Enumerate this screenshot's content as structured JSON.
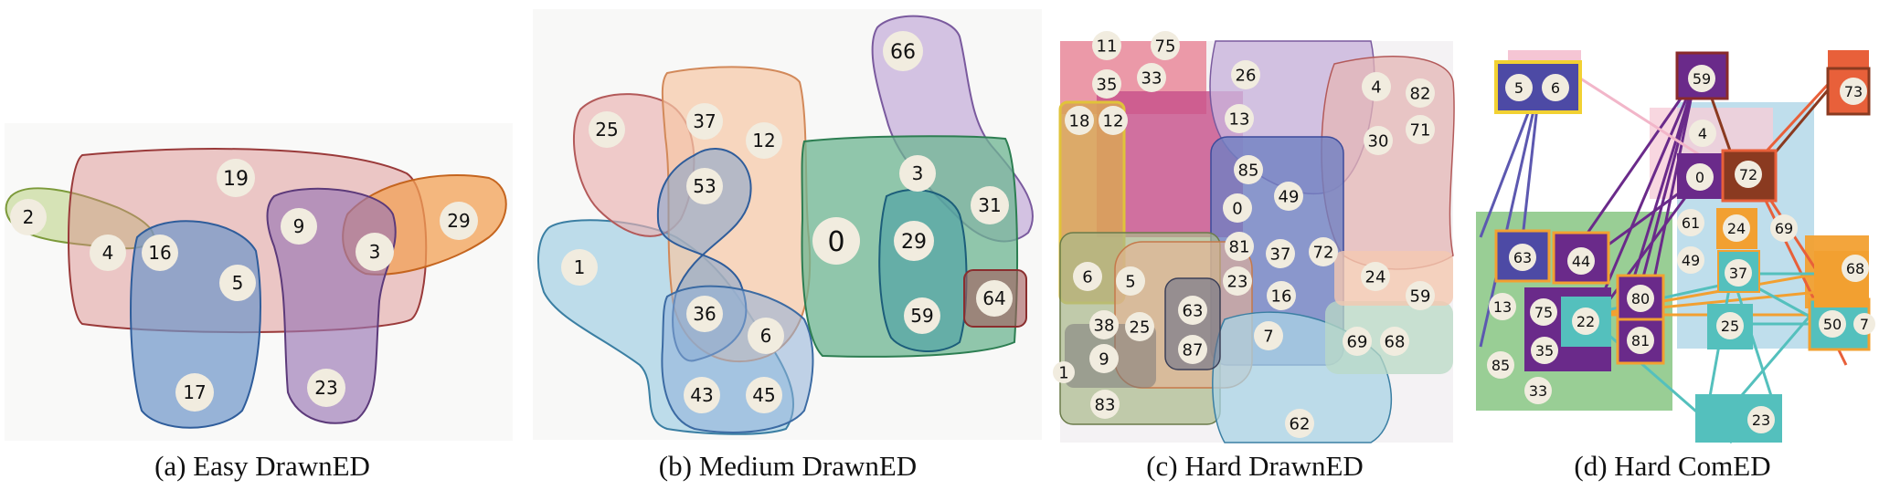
{
  "panels": {
    "a": {
      "caption": "(a)  Easy DrawnED",
      "nodes": [
        "2",
        "19",
        "4",
        "16",
        "5",
        "9",
        "3",
        "29",
        "17",
        "23"
      ]
    },
    "b": {
      "caption": "(b)  Medium DrawnED",
      "nodes": [
        "66",
        "25",
        "37",
        "12",
        "53",
        "3",
        "31",
        "0",
        "29",
        "1",
        "36",
        "6",
        "59",
        "64",
        "43",
        "45"
      ]
    },
    "c": {
      "caption": "(c)  Hard DrawnED",
      "nodes": [
        "11",
        "75",
        "35",
        "33",
        "26",
        "4",
        "82",
        "18",
        "12",
        "13",
        "71",
        "30",
        "85",
        "49",
        "0",
        "81",
        "37",
        "72",
        "6",
        "5",
        "23",
        "16",
        "24",
        "59",
        "63",
        "38",
        "25",
        "9",
        "87",
        "7",
        "69",
        "68",
        "1",
        "83",
        "62"
      ]
    },
    "d": {
      "caption": "(d)  Hard ComED",
      "nodes": [
        "5",
        "6",
        "59",
        "73",
        "4",
        "0",
        "72",
        "61",
        "24",
        "69",
        "63",
        "44",
        "49",
        "37",
        "68",
        "80",
        "13",
        "75",
        "22",
        "25",
        "50",
        "7",
        "81",
        "85",
        "35",
        "33",
        "23"
      ]
    }
  }
}
